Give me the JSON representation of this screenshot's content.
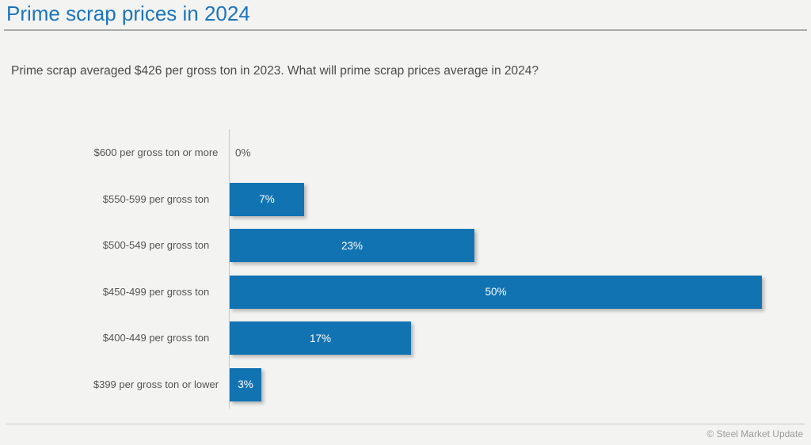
{
  "page": {
    "title": "Prime scrap prices in 2024",
    "subtitle": "Prime scrap averaged $426 per gross ton in 2023. What will prime scrap prices average in 2024?",
    "footer_credit": "© Steel Market Update"
  },
  "colors": {
    "title_blue": "#1b75bc",
    "bar_blue": "#1273b3",
    "bar_value_text": "#ffffff",
    "zero_value_text": "#595959",
    "category_text": "#545454",
    "background": "#f3f3f2",
    "axis_line": "#c8c8c8"
  },
  "chart_data": {
    "type": "bar",
    "orientation": "horizontal",
    "title": "Prime scrap prices in 2024",
    "subtitle": "Prime scrap averaged $426 per gross ton in 2023. What will prime scrap prices average in 2024?",
    "categories": [
      "$600 per gross ton or more",
      "$550-599 per gross ton",
      "$500-549 per gross ton",
      "$450-499 per gross ton",
      "$400-449 per gross ton",
      "$399 per gross ton or lower"
    ],
    "values": [
      0,
      7,
      23,
      50,
      17,
      3
    ],
    "value_labels": [
      "0%",
      "7%",
      "23%",
      "50%",
      "17%",
      "3%"
    ],
    "xlabel": "",
    "ylabel": "",
    "xlim": [
      0,
      54
    ],
    "grid": false,
    "legend": false,
    "value_label_position": "inside-center"
  }
}
